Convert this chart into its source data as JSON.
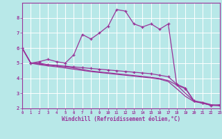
{
  "xlabel": "Windchill (Refroidissement éolien,°C)",
  "background_color": "#b8e8e8",
  "grid_color": "#aadddd",
  "line_color": "#993399",
  "xlim": [
    0,
    23
  ],
  "ylim": [
    2,
    9
  ],
  "xticks": [
    0,
    1,
    2,
    3,
    4,
    5,
    6,
    7,
    8,
    9,
    10,
    11,
    12,
    13,
    14,
    15,
    16,
    17,
    18,
    19,
    20,
    21,
    22,
    23
  ],
  "yticks": [
    2,
    3,
    4,
    5,
    6,
    7,
    8
  ],
  "line1_x": [
    0,
    1,
    2,
    3,
    4,
    5,
    6,
    7,
    8,
    9,
    10,
    11,
    12,
    13,
    14,
    15,
    16,
    17,
    18,
    19,
    20,
    21,
    22,
    23
  ],
  "line1_y": [
    6.0,
    5.0,
    5.1,
    5.25,
    5.1,
    5.0,
    5.55,
    6.9,
    6.6,
    7.0,
    7.45,
    8.55,
    8.45,
    7.6,
    7.4,
    7.6,
    7.25,
    7.6,
    3.55,
    3.3,
    2.5,
    2.35,
    2.2,
    2.25
  ],
  "line2_x": [
    0,
    1,
    2,
    3,
    4,
    5,
    6,
    7,
    8,
    9,
    10,
    11,
    12,
    13,
    14,
    15,
    16,
    17,
    18,
    19,
    20,
    21,
    22,
    23
  ],
  "line2_y": [
    6.0,
    5.0,
    5.0,
    4.9,
    4.85,
    4.8,
    4.75,
    4.7,
    4.65,
    4.6,
    4.55,
    4.5,
    4.45,
    4.4,
    4.35,
    4.3,
    4.2,
    4.1,
    3.6,
    3.35,
    2.5,
    2.35,
    2.2,
    2.2
  ],
  "line3_x": [
    0,
    1,
    2,
    3,
    4,
    5,
    6,
    7,
    8,
    9,
    10,
    11,
    12,
    13,
    14,
    15,
    16,
    17,
    18,
    19,
    20,
    21,
    22,
    23
  ],
  "line3_y": [
    6.0,
    5.0,
    4.95,
    4.88,
    4.82,
    4.76,
    4.68,
    4.58,
    4.48,
    4.42,
    4.36,
    4.3,
    4.24,
    4.18,
    4.12,
    4.06,
    3.98,
    3.85,
    3.55,
    3.0,
    2.5,
    2.4,
    2.25,
    2.2
  ],
  "line4_x": [
    0,
    1,
    2,
    3,
    4,
    5,
    6,
    7,
    8,
    9,
    10,
    11,
    12,
    13,
    14,
    15,
    16,
    17,
    18,
    19,
    20,
    21,
    22,
    23
  ],
  "line4_y": [
    6.0,
    5.0,
    4.9,
    4.82,
    4.76,
    4.68,
    4.6,
    4.52,
    4.44,
    4.38,
    4.32,
    4.26,
    4.2,
    4.14,
    4.08,
    4.02,
    3.94,
    3.78,
    3.3,
    2.8,
    2.45,
    2.35,
    2.22,
    2.18
  ]
}
